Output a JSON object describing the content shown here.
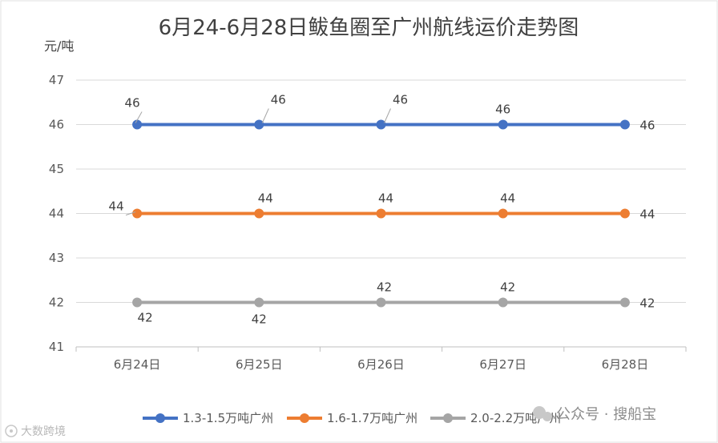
{
  "chart_data": {
    "type": "line",
    "title": "6月24-6月28日鲅鱼圈至广州航线运价走势图",
    "ylabel": "元/吨",
    "xlabel": "",
    "categories": [
      "6月24日",
      "6月25日",
      "6月26日",
      "6月27日",
      "6月28日"
    ],
    "ylim": [
      41,
      47
    ],
    "yticks": [
      41,
      42,
      43,
      44,
      45,
      46,
      47
    ],
    "grid": true,
    "legend_position": "bottom",
    "series": [
      {
        "name": "1.3-1.5万吨广州",
        "values": [
          46,
          46,
          46,
          46,
          46
        ],
        "color": "#4472c4"
      },
      {
        "name": "1.6-1.7万吨广州",
        "values": [
          44,
          44,
          44,
          44,
          44
        ],
        "color": "#ed7d31"
      },
      {
        "name": "2.0-2.2万吨广州",
        "values": [
          42,
          42,
          42,
          42,
          42
        ],
        "color": "#a5a5a5"
      }
    ]
  },
  "watermark": {
    "account": "公众号 · 搜船宝",
    "source": "大数跨境"
  }
}
